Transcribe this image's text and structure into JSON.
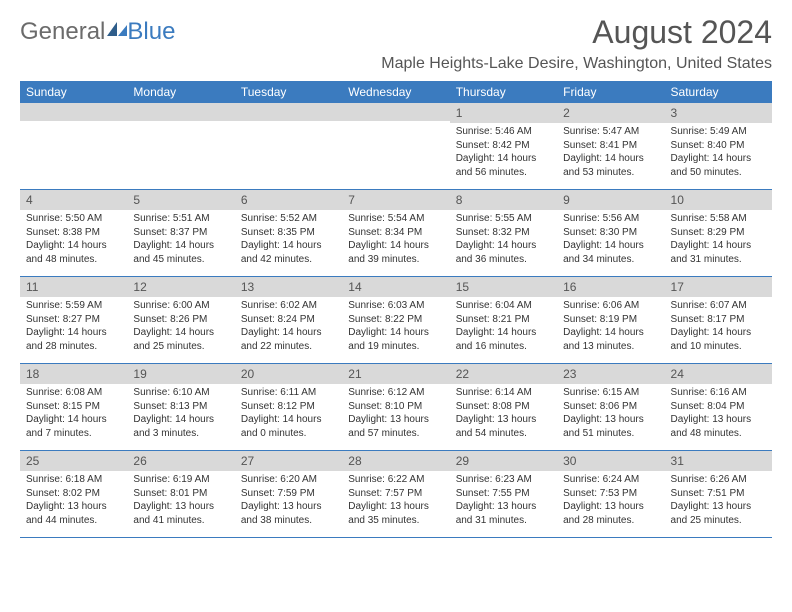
{
  "brand": {
    "part1": "General",
    "part2": "Blue"
  },
  "title": "August 2024",
  "location": "Maple Heights-Lake Desire, Washington, United States",
  "colors": {
    "header_bg": "#3b7bbf",
    "header_text": "#ffffff",
    "daynum_bg": "#d9d9d9",
    "border": "#3b7bbf",
    "body_text": "#333333"
  },
  "days_of_week": [
    "Sunday",
    "Monday",
    "Tuesday",
    "Wednesday",
    "Thursday",
    "Friday",
    "Saturday"
  ],
  "weeks": [
    [
      null,
      null,
      null,
      null,
      {
        "n": "1",
        "sr": "Sunrise: 5:46 AM",
        "ss": "Sunset: 8:42 PM",
        "dl": "Daylight: 14 hours and 56 minutes."
      },
      {
        "n": "2",
        "sr": "Sunrise: 5:47 AM",
        "ss": "Sunset: 8:41 PM",
        "dl": "Daylight: 14 hours and 53 minutes."
      },
      {
        "n": "3",
        "sr": "Sunrise: 5:49 AM",
        "ss": "Sunset: 8:40 PM",
        "dl": "Daylight: 14 hours and 50 minutes."
      }
    ],
    [
      {
        "n": "4",
        "sr": "Sunrise: 5:50 AM",
        "ss": "Sunset: 8:38 PM",
        "dl": "Daylight: 14 hours and 48 minutes."
      },
      {
        "n": "5",
        "sr": "Sunrise: 5:51 AM",
        "ss": "Sunset: 8:37 PM",
        "dl": "Daylight: 14 hours and 45 minutes."
      },
      {
        "n": "6",
        "sr": "Sunrise: 5:52 AM",
        "ss": "Sunset: 8:35 PM",
        "dl": "Daylight: 14 hours and 42 minutes."
      },
      {
        "n": "7",
        "sr": "Sunrise: 5:54 AM",
        "ss": "Sunset: 8:34 PM",
        "dl": "Daylight: 14 hours and 39 minutes."
      },
      {
        "n": "8",
        "sr": "Sunrise: 5:55 AM",
        "ss": "Sunset: 8:32 PM",
        "dl": "Daylight: 14 hours and 36 minutes."
      },
      {
        "n": "9",
        "sr": "Sunrise: 5:56 AM",
        "ss": "Sunset: 8:30 PM",
        "dl": "Daylight: 14 hours and 34 minutes."
      },
      {
        "n": "10",
        "sr": "Sunrise: 5:58 AM",
        "ss": "Sunset: 8:29 PM",
        "dl": "Daylight: 14 hours and 31 minutes."
      }
    ],
    [
      {
        "n": "11",
        "sr": "Sunrise: 5:59 AM",
        "ss": "Sunset: 8:27 PM",
        "dl": "Daylight: 14 hours and 28 minutes."
      },
      {
        "n": "12",
        "sr": "Sunrise: 6:00 AM",
        "ss": "Sunset: 8:26 PM",
        "dl": "Daylight: 14 hours and 25 minutes."
      },
      {
        "n": "13",
        "sr": "Sunrise: 6:02 AM",
        "ss": "Sunset: 8:24 PM",
        "dl": "Daylight: 14 hours and 22 minutes."
      },
      {
        "n": "14",
        "sr": "Sunrise: 6:03 AM",
        "ss": "Sunset: 8:22 PM",
        "dl": "Daylight: 14 hours and 19 minutes."
      },
      {
        "n": "15",
        "sr": "Sunrise: 6:04 AM",
        "ss": "Sunset: 8:21 PM",
        "dl": "Daylight: 14 hours and 16 minutes."
      },
      {
        "n": "16",
        "sr": "Sunrise: 6:06 AM",
        "ss": "Sunset: 8:19 PM",
        "dl": "Daylight: 14 hours and 13 minutes."
      },
      {
        "n": "17",
        "sr": "Sunrise: 6:07 AM",
        "ss": "Sunset: 8:17 PM",
        "dl": "Daylight: 14 hours and 10 minutes."
      }
    ],
    [
      {
        "n": "18",
        "sr": "Sunrise: 6:08 AM",
        "ss": "Sunset: 8:15 PM",
        "dl": "Daylight: 14 hours and 7 minutes."
      },
      {
        "n": "19",
        "sr": "Sunrise: 6:10 AM",
        "ss": "Sunset: 8:13 PM",
        "dl": "Daylight: 14 hours and 3 minutes."
      },
      {
        "n": "20",
        "sr": "Sunrise: 6:11 AM",
        "ss": "Sunset: 8:12 PM",
        "dl": "Daylight: 14 hours and 0 minutes."
      },
      {
        "n": "21",
        "sr": "Sunrise: 6:12 AM",
        "ss": "Sunset: 8:10 PM",
        "dl": "Daylight: 13 hours and 57 minutes."
      },
      {
        "n": "22",
        "sr": "Sunrise: 6:14 AM",
        "ss": "Sunset: 8:08 PM",
        "dl": "Daylight: 13 hours and 54 minutes."
      },
      {
        "n": "23",
        "sr": "Sunrise: 6:15 AM",
        "ss": "Sunset: 8:06 PM",
        "dl": "Daylight: 13 hours and 51 minutes."
      },
      {
        "n": "24",
        "sr": "Sunrise: 6:16 AM",
        "ss": "Sunset: 8:04 PM",
        "dl": "Daylight: 13 hours and 48 minutes."
      }
    ],
    [
      {
        "n": "25",
        "sr": "Sunrise: 6:18 AM",
        "ss": "Sunset: 8:02 PM",
        "dl": "Daylight: 13 hours and 44 minutes."
      },
      {
        "n": "26",
        "sr": "Sunrise: 6:19 AM",
        "ss": "Sunset: 8:01 PM",
        "dl": "Daylight: 13 hours and 41 minutes."
      },
      {
        "n": "27",
        "sr": "Sunrise: 6:20 AM",
        "ss": "Sunset: 7:59 PM",
        "dl": "Daylight: 13 hours and 38 minutes."
      },
      {
        "n": "28",
        "sr": "Sunrise: 6:22 AM",
        "ss": "Sunset: 7:57 PM",
        "dl": "Daylight: 13 hours and 35 minutes."
      },
      {
        "n": "29",
        "sr": "Sunrise: 6:23 AM",
        "ss": "Sunset: 7:55 PM",
        "dl": "Daylight: 13 hours and 31 minutes."
      },
      {
        "n": "30",
        "sr": "Sunrise: 6:24 AM",
        "ss": "Sunset: 7:53 PM",
        "dl": "Daylight: 13 hours and 28 minutes."
      },
      {
        "n": "31",
        "sr": "Sunrise: 6:26 AM",
        "ss": "Sunset: 7:51 PM",
        "dl": "Daylight: 13 hours and 25 minutes."
      }
    ]
  ]
}
